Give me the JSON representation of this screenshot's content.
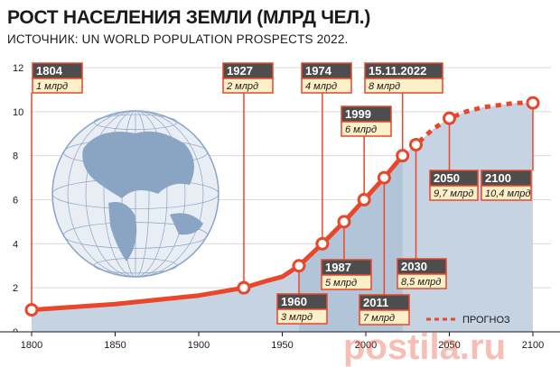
{
  "header": {
    "title": "РОСТ НАСЕЛЕНИЯ ЗЕМЛИ (МЛРД ЧЕЛ.)",
    "subtitle": "ИСТОЧНИК: UN WORLD POPULATION PROSPECTS 2022."
  },
  "colors": {
    "line": "#e8472b",
    "area": "#c5d3e3",
    "area_dark": "#a9bdd3",
    "label_head": "#4d4d4d",
    "label_body": "#fdefc7",
    "globe": "#8aa4c4"
  },
  "watermark": "postila.ru",
  "chart_data": {
    "type": "line",
    "xlim": [
      1800,
      2100
    ],
    "ylim": [
      0,
      13
    ],
    "x_ticks": [
      "1800",
      "1850",
      "1900",
      "1950",
      "2000",
      "2050",
      "2100"
    ],
    "y_ticks": [
      "0",
      "2",
      "4",
      "6",
      "8",
      "10",
      "12"
    ],
    "grid": "horizontal",
    "series": [
      {
        "style": "solid",
        "points": [
          {
            "x": 1800,
            "y": 1.0
          },
          {
            "x": 1850,
            "y": 1.26
          },
          {
            "x": 1900,
            "y": 1.65
          },
          {
            "x": 1927,
            "y": 2.0
          },
          {
            "x": 1940,
            "y": 2.3
          },
          {
            "x": 1950,
            "y": 2.5
          },
          {
            "x": 1960,
            "y": 3.0
          },
          {
            "x": 1974,
            "y": 4.0
          },
          {
            "x": 1987,
            "y": 5.0
          },
          {
            "x": 1999,
            "y": 6.0
          },
          {
            "x": 2011,
            "y": 7.0
          },
          {
            "x": 2022,
            "y": 8.0
          }
        ]
      },
      {
        "name": "ПРОГНОЗ",
        "style": "dashed",
        "points": [
          {
            "x": 2022,
            "y": 8.0
          },
          {
            "x": 2030,
            "y": 8.5
          },
          {
            "x": 2040,
            "y": 9.2
          },
          {
            "x": 2050,
            "y": 9.7
          },
          {
            "x": 2060,
            "y": 10.0
          },
          {
            "x": 2070,
            "y": 10.2
          },
          {
            "x": 2080,
            "y": 10.3
          },
          {
            "x": 2090,
            "y": 10.4
          },
          {
            "x": 2100,
            "y": 10.4
          }
        ]
      }
    ],
    "markers": [
      1800,
      1927,
      1960,
      1974,
      1987,
      1999,
      2011,
      2022,
      2030,
      2050,
      2100
    ],
    "annotations": [
      {
        "x": 1800,
        "y": 1.0,
        "year": "1804",
        "value": "1 млрд"
      },
      {
        "x": 1927,
        "y": 2.0,
        "year": "1927",
        "value": "2 млрд"
      },
      {
        "x": 1960,
        "y": 3.0,
        "year": "1960",
        "value": "3 млрд"
      },
      {
        "x": 1974,
        "y": 4.0,
        "year": "1974",
        "value": "4 млрд"
      },
      {
        "x": 1987,
        "y": 5.0,
        "year": "1987",
        "value": "5 млрд"
      },
      {
        "x": 1999,
        "y": 6.0,
        "year": "1999",
        "value": "6 млрд"
      },
      {
        "x": 2011,
        "y": 7.0,
        "year": "2011",
        "value": "7 млрд"
      },
      {
        "x": 2022,
        "y": 8.0,
        "year": "15.11.2022",
        "value": "8 млрд"
      },
      {
        "x": 2030,
        "y": 8.5,
        "year": "2030",
        "value": "8,5 млрд"
      },
      {
        "x": 2050,
        "y": 9.7,
        "year": "2050",
        "value": "9,7 млрд"
      },
      {
        "x": 2100,
        "y": 10.4,
        "year": "2100",
        "value": "10,4 млрд"
      }
    ],
    "legend": {
      "label": "ПРОГНОЗ",
      "style": "dashed",
      "placement": "bottom-right"
    }
  }
}
